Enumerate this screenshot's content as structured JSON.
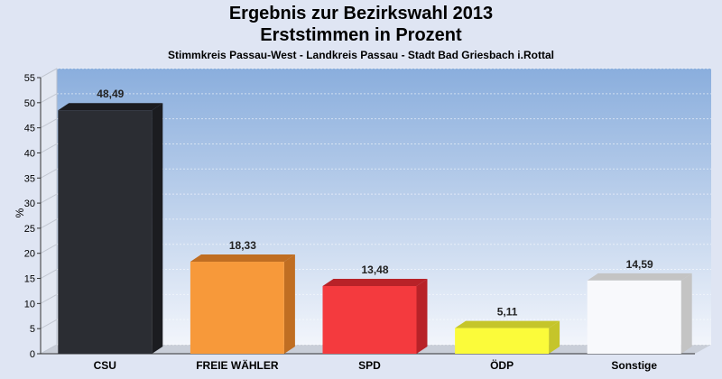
{
  "title": "Ergebnis zur Bezirkswahl 2013",
  "subtitle": "Erststimmen in Prozent",
  "caption": "Stimmkreis Passau-West - Landkreis Passau - Stadt Bad Griesbach i.Rottal",
  "chart_data": {
    "type": "bar",
    "ylabel": "%",
    "xlabel": "",
    "ylim": [
      0,
      55
    ],
    "yticks": [
      0,
      5,
      10,
      15,
      20,
      25,
      30,
      35,
      40,
      45,
      50,
      55
    ],
    "grid": true,
    "categories": [
      "CSU",
      "FREIE WÄHLER",
      "SPD",
      "ÖDP",
      "Sonstige"
    ],
    "values": [
      48.49,
      18.33,
      13.48,
      5.11,
      14.59
    ],
    "value_labels": [
      "48,49",
      "18,33",
      "13,48",
      "5,11",
      "14,59"
    ],
    "colors": [
      "#2b2d33",
      "#f7993a",
      "#f43a3e",
      "#fbfb3a",
      "#f8f9fc"
    ],
    "side_colors": [
      "#1b1c20",
      "#c06e22",
      "#b82228",
      "#c5c52a",
      "#c4c4c4"
    ],
    "plot_background_top": "#8aaedd",
    "plot_background_bottom": "#f2f5fb"
  }
}
